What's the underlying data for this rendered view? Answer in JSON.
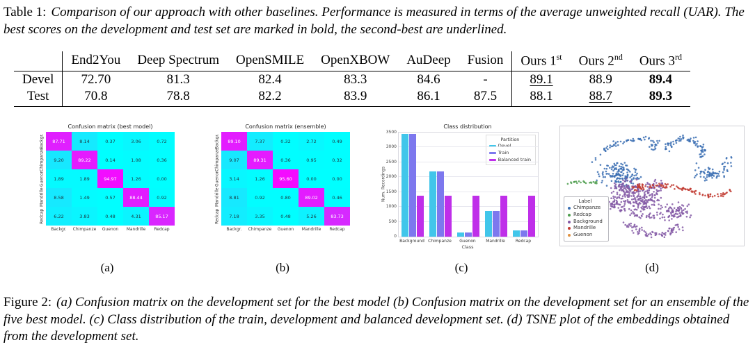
{
  "table_caption": {
    "prefix": "Table 1:",
    "body": "Comparison of our approach with other baselines. Performance is measured in terms of the average unweighted recall (UAR). The best scores on the development and test set are marked in bold, the second-best are underlined."
  },
  "figure_caption": {
    "prefix": "Figure 2:",
    "body": "(a) Confusion matrix on the development set for the best model (b) Confusion matrix on the development set for an ensemble of the five best model. (c) Class distribution of the train, development and balanced development set. (d) TSNE plot of the embeddings obtained from the development set."
  },
  "subcaptions": [
    "(a)",
    "(b)",
    "(c)",
    "(d)"
  ],
  "results_table": {
    "columns": [
      {
        "label": "End2You"
      },
      {
        "label": "Deep Spectrum"
      },
      {
        "label": "OpenSMILE"
      },
      {
        "label": "OpenXBOW"
      },
      {
        "label": "AuDeep"
      },
      {
        "label": "Fusion"
      },
      {
        "label": "Ours 1",
        "sup": "st"
      },
      {
        "label": "Ours 2",
        "sup": "nd"
      },
      {
        "label": "Ours 3",
        "sup": "rd"
      }
    ],
    "rows": [
      {
        "label": "Devel",
        "values": [
          {
            "text": "72.70"
          },
          {
            "text": "81.3"
          },
          {
            "text": "82.4"
          },
          {
            "text": "83.3"
          },
          {
            "text": "84.6"
          },
          {
            "text": "-"
          },
          {
            "text": "89.1",
            "underline": true
          },
          {
            "text": "88.9"
          },
          {
            "text": "89.4",
            "bold": true
          }
        ]
      },
      {
        "label": "Test",
        "values": [
          {
            "text": "70.8"
          },
          {
            "text": "78.8"
          },
          {
            "text": "82.2"
          },
          {
            "text": "83.9"
          },
          {
            "text": "86.1"
          },
          {
            "text": "87.5"
          },
          {
            "text": "88.1"
          },
          {
            "text": "88.7",
            "underline": true
          },
          {
            "text": "89.3",
            "bold": true
          }
        ]
      }
    ]
  },
  "chart_data": [
    {
      "type": "heatmap",
      "id": "a",
      "title": "Confusion matrix (best model)",
      "colormap": "cool",
      "value_range": [
        0,
        100
      ],
      "x_labels": [
        "Backgr.",
        "Chimpanze",
        "Guenon",
        "Mandrille",
        "Redcap"
      ],
      "y_labels": [
        "Backgr.",
        "Chimpanze",
        "Guenon",
        "Mandrille",
        "Redcap"
      ],
      "values": [
        [
          "87.71",
          "8.14",
          "0.37",
          "3.06",
          "0.72"
        ],
        [
          "9.20",
          "89.22",
          "0.14",
          "1.08",
          "0.36"
        ],
        [
          "1.89",
          "1.89",
          "94.97",
          "1.26",
          "0.00"
        ],
        [
          "8.58",
          "1.49",
          "0.57",
          "88.44",
          "0.92"
        ],
        [
          "6.22",
          "3.83",
          "0.48",
          "4.31",
          "85.17"
        ]
      ]
    },
    {
      "type": "heatmap",
      "id": "b",
      "title": "Confusion matrix (ensemble)",
      "colormap": "cool",
      "value_range": [
        0,
        100
      ],
      "x_labels": [
        "Backgr.",
        "Chimpanze",
        "Guenon",
        "Mandrille",
        "Redcap"
      ],
      "y_labels": [
        "Backgr.",
        "Chimpanze",
        "Guenon",
        "Mandrille",
        "Redcap"
      ],
      "values": [
        [
          "89.10",
          "7.37",
          "0.32",
          "2.72",
          "0.49"
        ],
        [
          "9.07",
          "89.31",
          "0.36",
          "0.95",
          "0.32"
        ],
        [
          "3.14",
          "1.26",
          "95.60",
          "0.00",
          "0.00"
        ],
        [
          "8.81",
          "0.92",
          "0.80",
          "89.02",
          "0.46"
        ],
        [
          "7.18",
          "3.35",
          "0.48",
          "5.26",
          "83.73"
        ]
      ]
    },
    {
      "type": "bar",
      "id": "c",
      "title": "Class distribution",
      "xlabel": "Class",
      "ylabel": "Num. Recordings",
      "legend_title": "Partition",
      "legend_position": "upper right",
      "grid": true,
      "ylim": [
        0,
        3500
      ],
      "yticks": [
        0,
        500,
        1000,
        1500,
        2000,
        2500,
        3000,
        3500
      ],
      "categories": [
        "Background",
        "Chimpanze",
        "Guenon",
        "Mandrille",
        "Redcap"
      ],
      "series": [
        {
          "name": "Devel",
          "color": "#41c6ea",
          "values": [
            3450,
            2200,
            150,
            860,
            200
          ]
        },
        {
          "name": "Train",
          "color": "#7d78ee",
          "values": [
            3450,
            2200,
            150,
            860,
            200
          ]
        },
        {
          "name": "Balanced train",
          "color": "#bf2fe9",
          "values": [
            1370,
            1370,
            1370,
            1370,
            1370
          ]
        }
      ]
    },
    {
      "type": "scatter",
      "id": "d",
      "legend_title": "Label",
      "legend_position": "lower left",
      "classes": [
        {
          "name": "Chimpanze",
          "color": "#3b6fb3"
        },
        {
          "name": "Redcap",
          "color": "#4e9e4e"
        },
        {
          "name": "Background",
          "color": "#8358a5"
        },
        {
          "name": "Mandrille",
          "color": "#c13930"
        },
        {
          "name": "Guenon",
          "color": "#e0913f"
        }
      ],
      "clusters": [
        {
          "label": "Chimpanze",
          "kind": "arc",
          "p": [
            [
              0.17,
              0.3
            ],
            [
              0.3,
              0.08
            ],
            [
              0.5,
              0.1
            ]
          ],
          "n": 50,
          "spread": 0.012
        },
        {
          "label": "Chimpanze",
          "kind": "blob",
          "c": [
            0.52,
            0.16
          ],
          "r": [
            0.035,
            0.055
          ],
          "n": 18
        },
        {
          "label": "Chimpanze",
          "kind": "blob",
          "c": [
            0.32,
            0.4
          ],
          "r": [
            0.105,
            0.105
          ],
          "n": 150
        },
        {
          "label": "Chimpanze",
          "kind": "arc",
          "p": [
            [
              0.57,
              0.22
            ],
            [
              0.62,
              0.05
            ],
            [
              0.72,
              0.12
            ]
          ],
          "n": 40,
          "spread": 0.015
        },
        {
          "label": "Chimpanze",
          "kind": "arc",
          "p": [
            [
              0.72,
              0.12
            ],
            [
              0.8,
              0.18
            ],
            [
              0.76,
              0.33
            ]
          ],
          "n": 35,
          "spread": 0.013
        },
        {
          "label": "Chimpanze",
          "kind": "blob",
          "c": [
            0.82,
            0.4
          ],
          "r": [
            0.09,
            0.055
          ],
          "n": 60
        },
        {
          "label": "Chimpanze",
          "kind": "blob",
          "c": [
            0.91,
            0.3
          ],
          "r": [
            0.03,
            0.05
          ],
          "n": 12
        },
        {
          "label": "Background",
          "kind": "blob",
          "c": [
            0.36,
            0.54
          ],
          "r": [
            0.075,
            0.09
          ],
          "n": 110
        },
        {
          "label": "Background",
          "kind": "blob",
          "c": [
            0.3,
            0.66
          ],
          "r": [
            0.05,
            0.06
          ],
          "n": 50
        },
        {
          "label": "Background",
          "kind": "blob",
          "c": [
            0.46,
            0.62
          ],
          "r": [
            0.09,
            0.09
          ],
          "n": 130
        },
        {
          "label": "Background",
          "kind": "arc",
          "p": [
            [
              0.36,
              0.82
            ],
            [
              0.5,
              0.98
            ],
            [
              0.66,
              0.84
            ]
          ],
          "n": 80,
          "spread": 0.02
        },
        {
          "label": "Background",
          "kind": "blob",
          "c": [
            0.62,
            0.72
          ],
          "r": [
            0.085,
            0.08
          ],
          "n": 90
        },
        {
          "label": "Background",
          "kind": "blob",
          "c": [
            0.52,
            0.5
          ],
          "r": [
            0.05,
            0.05
          ],
          "n": 40
        },
        {
          "label": "Background",
          "kind": "arc",
          "p": [
            [
              0.4,
              0.72
            ],
            [
              0.44,
              0.78
            ],
            [
              0.52,
              0.74
            ]
          ],
          "n": 30,
          "spread": 0.015
        },
        {
          "label": "Mandrille",
          "kind": "arc",
          "p": [
            [
              0.4,
              0.52
            ],
            [
              0.58,
              0.46
            ],
            [
              0.76,
              0.56
            ]
          ],
          "n": 70,
          "spread": 0.012
        },
        {
          "label": "Mandrille",
          "kind": "arc",
          "p": [
            [
              0.76,
              0.56
            ],
            [
              0.86,
              0.62
            ],
            [
              0.93,
              0.54
            ]
          ],
          "n": 28,
          "spread": 0.01
        },
        {
          "label": "Mandrille",
          "kind": "blob",
          "c": [
            0.43,
            0.5
          ],
          "r": [
            0.03,
            0.03
          ],
          "n": 10
        },
        {
          "label": "Redcap",
          "kind": "arc",
          "p": [
            [
              0.045,
              0.475
            ],
            [
              0.12,
              0.455
            ],
            [
              0.2,
              0.475
            ]
          ],
          "n": 22,
          "spread": 0.007
        },
        {
          "label": "Guenon",
          "kind": "arc",
          "p": [
            [
              0.145,
              0.75
            ],
            [
              0.155,
              0.66
            ],
            [
              0.225,
              0.585
            ]
          ],
          "n": 18,
          "spread": 0.008
        }
      ]
    }
  ]
}
